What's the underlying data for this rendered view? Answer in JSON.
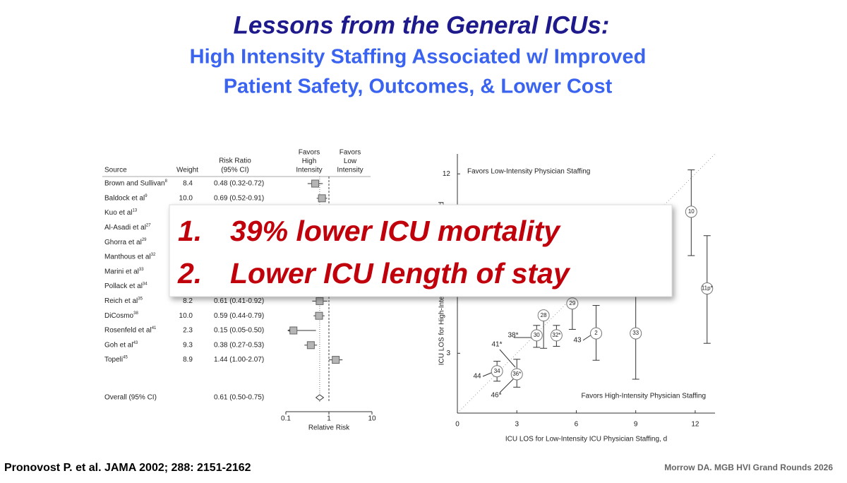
{
  "slide": {
    "title": "Lessons from the General ICUs:",
    "subtitle_lines": [
      "High Intensity Staffing Associated w/ Improved",
      "Patient Safety, Outcomes, & Lower Cost"
    ],
    "callout": [
      {
        "number": "1.",
        "text": "39% lower ICU mortality"
      },
      {
        "number": "2.",
        "text": "Lower ICU length of stay"
      }
    ],
    "citation": "Pronovost P. et al. JAMA 2002; 288: 2151-2162",
    "footer": "Morrow DA. MGB HVI Grand Rounds 2026"
  },
  "chart_data": [
    {
      "type": "forest",
      "headers": {
        "source": "Source",
        "weight": "Weight",
        "ratio": [
          "Risk Ratio",
          "(95% CI)"
        ],
        "favors_left": [
          "Favors",
          "High",
          "Intensity"
        ],
        "favors_right": [
          "Favors",
          "Low",
          "Intensity"
        ]
      },
      "categories": [
        "Brown and Sullivan",
        "Baldock et al",
        "Kuo et al",
        "Al-Asadi et al",
        "Ghorra et al",
        "Manthous et al",
        "Marini et al",
        "Pollack et al",
        "Reich et al",
        "DiCosmo",
        "Rosenfeld et al",
        "Goh et al",
        "Topeli"
      ],
      "refs": [
        "8",
        "9",
        "13",
        "27",
        "29",
        "32",
        "33",
        "34",
        "35",
        "38",
        "41",
        "43",
        "45"
      ],
      "weights": [
        "8.4",
        "10.0",
        null,
        null,
        null,
        null,
        null,
        null,
        "8.2",
        "10.0",
        "2.3",
        "9.3",
        "8.9"
      ],
      "values": [
        0.48,
        0.69,
        null,
        null,
        null,
        null,
        null,
        null,
        0.61,
        0.59,
        0.15,
        0.38,
        1.44
      ],
      "lower": [
        0.32,
        0.52,
        null,
        null,
        null,
        null,
        null,
        null,
        0.41,
        0.44,
        0.05,
        0.27,
        1.0
      ],
      "upper": [
        0.72,
        0.91,
        null,
        null,
        null,
        null,
        null,
        null,
        0.92,
        0.79,
        0.5,
        0.53,
        2.07
      ],
      "value_labels": [
        "0.48 (0.32-0.72)",
        "0.69 (0.52-0.91)",
        null,
        null,
        null,
        null,
        null,
        null,
        "0.61 (0.41-0.92)",
        "0.59 (0.44-0.79)",
        "0.15 (0.05-0.50)",
        "0.38 (0.27-0.53)",
        "1.44 (1.00-2.07)"
      ],
      "overall_label": "Overall (95% CI)",
      "overall_value": 0.61,
      "overall_lower": 0.5,
      "overall_upper": 0.75,
      "overall_value_label": "0.61 (0.50-0.75)",
      "reference_line": 1,
      "log_scale": true,
      "xlim": [
        0.1,
        10
      ],
      "xticks": [
        0.1,
        1,
        10
      ],
      "x_label": "Relative Risk"
    },
    {
      "type": "scatter",
      "labels": [
        "10",
        "11p*",
        "29",
        "28",
        "30",
        "32*",
        "2",
        "33",
        "34",
        "36*"
      ],
      "x": [
        11.8,
        12.6,
        5.8,
        4.35,
        4.0,
        5.0,
        7.0,
        9.0,
        2.0,
        3.0
      ],
      "values": [
        10.1,
        6.25,
        5.5,
        4.9,
        3.9,
        3.9,
        4.0,
        4.0,
        2.1,
        1.95
      ],
      "lower": [
        7.9,
        3.5,
        4.2,
        3.25,
        3.3,
        3.35,
        2.65,
        1.7,
        1.6,
        1.3
      ],
      "upper": [
        12.2,
        8.9,
        null,
        null,
        4.4,
        4.4,
        5.4,
        10.3,
        2.6,
        2.7
      ],
      "annotations": [
        "38*",
        "41*",
        "43",
        "44",
        "46*"
      ],
      "region_top": "Favors Low-Intensity Physician Staffing",
      "region_bottom": "Favors High-Intensity Physician Staffing",
      "x_label": "ICU LOS for Low-Intensity ICU Physician Staffing, d",
      "y_label": "ICU LOS for High-Intensity ICU Physician Staffing, d",
      "xlim": [
        0,
        13
      ],
      "ylim": [
        0,
        13
      ],
      "xticks": [
        0,
        3,
        6,
        9,
        12
      ],
      "yticks": [
        3,
        12
      ]
    }
  ]
}
